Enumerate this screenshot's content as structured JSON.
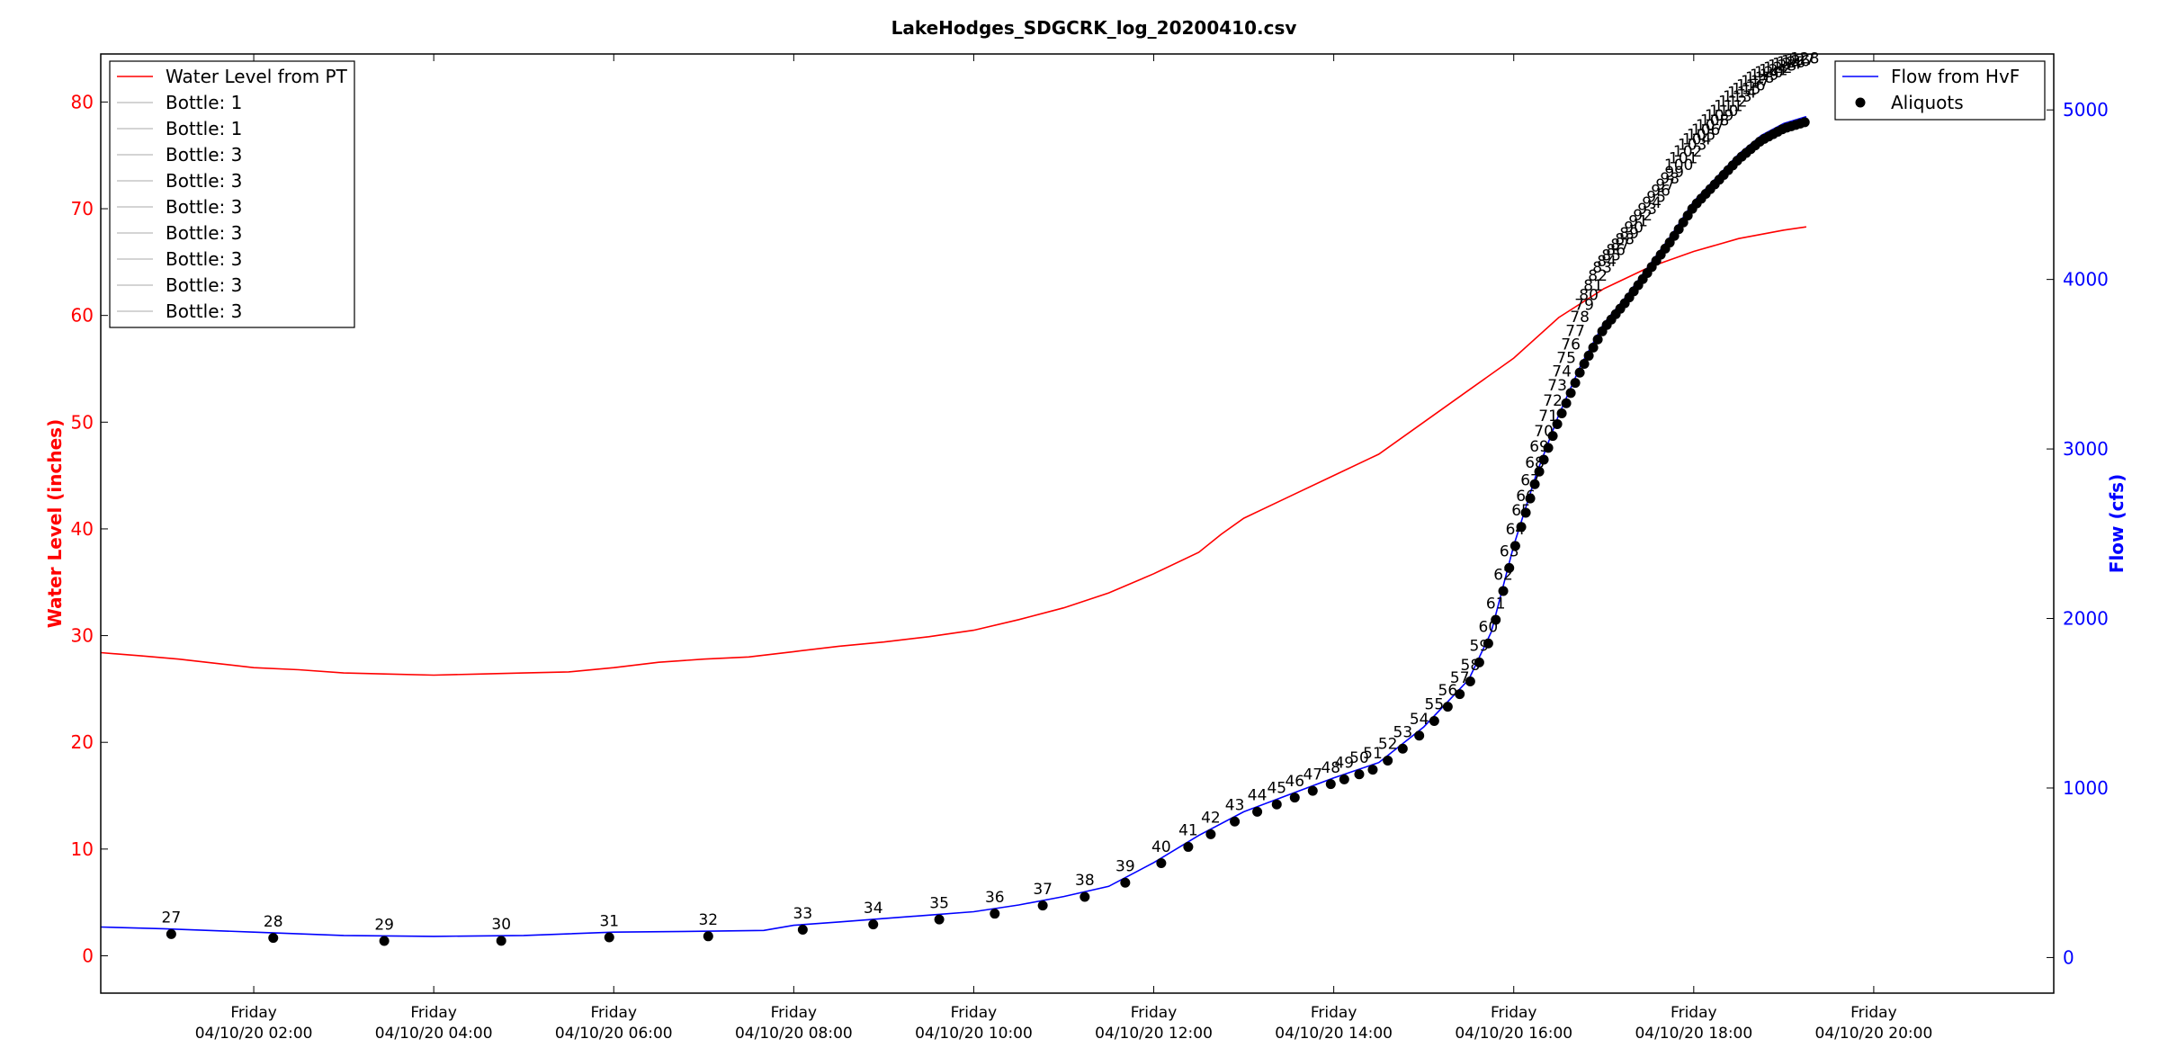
{
  "chart_data": {
    "type": "line",
    "title": "LakeHodges_SDGCRK_log_20200410.csv",
    "xaxis": {
      "ticks": [
        {
          "time": "02:00",
          "day": "Friday",
          "date": "04/10/20 02:00"
        },
        {
          "time": "04:00",
          "day": "Friday",
          "date": "04/10/20 04:00"
        },
        {
          "time": "06:00",
          "day": "Friday",
          "date": "04/10/20 06:00"
        },
        {
          "time": "08:00",
          "day": "Friday",
          "date": "04/10/20 08:00"
        },
        {
          "time": "10:00",
          "day": "Friday",
          "date": "04/10/20 10:00"
        },
        {
          "time": "12:00",
          "day": "Friday",
          "date": "04/10/20 12:00"
        },
        {
          "time": "14:00",
          "day": "Friday",
          "date": "04/10/20 14:00"
        },
        {
          "time": "16:00",
          "day": "Friday",
          "date": "04/10/20 16:00"
        },
        {
          "time": "18:00",
          "day": "Friday",
          "date": "04/10/20 18:00"
        },
        {
          "time": "20:00",
          "day": "Friday",
          "date": "04/10/20 20:00"
        }
      ],
      "range": [
        "00:18",
        "22:00"
      ]
    },
    "y_left": {
      "label": "Water Level (inches)",
      "range": [
        -3.5,
        84.5
      ],
      "ticks": [
        0,
        10,
        20,
        30,
        40,
        50,
        60,
        70,
        80
      ],
      "color": "#ff0000"
    },
    "y_right": {
      "label": "Flow (cfs)",
      "range": [
        -210,
        5330
      ],
      "ticks": [
        0,
        1000,
        2000,
        3000,
        4000,
        5000
      ],
      "color": "#0000ff"
    },
    "legend_left": {
      "placement": "top-left",
      "entries": [
        {
          "label": "Water Level from PT",
          "color": "#ff0000"
        },
        {
          "label": "Bottle: 1",
          "color": "#aaaaaa"
        },
        {
          "label": "Bottle: 1",
          "color": "#aaaaaa"
        },
        {
          "label": "Bottle: 3",
          "color": "#aaaaaa"
        },
        {
          "label": "Bottle: 3",
          "color": "#aaaaaa"
        },
        {
          "label": "Bottle: 3",
          "color": "#aaaaaa"
        },
        {
          "label": "Bottle: 3",
          "color": "#aaaaaa"
        },
        {
          "label": "Bottle: 3",
          "color": "#aaaaaa"
        },
        {
          "label": "Bottle: 3",
          "color": "#aaaaaa"
        },
        {
          "label": "Bottle: 3",
          "color": "#aaaaaa"
        }
      ]
    },
    "legend_right": {
      "placement": "top-right",
      "entries": [
        {
          "label": "Flow from HvF",
          "color": "#0000ff",
          "kind": "line"
        },
        {
          "label": "Aliquots",
          "color": "#000000",
          "kind": "marker"
        }
      ]
    },
    "series": [
      {
        "name": "Water Level from PT",
        "axis": "left",
        "color": "#ff0000",
        "points": [
          [
            "00:18",
            28.4
          ],
          [
            "00:45",
            28.1
          ],
          [
            "01:10",
            27.8
          ],
          [
            "01:35",
            27.4
          ],
          [
            "02:00",
            27.0
          ],
          [
            "02:30",
            26.8
          ],
          [
            "03:00",
            26.5
          ],
          [
            "03:30",
            26.4
          ],
          [
            "04:00",
            26.3
          ],
          [
            "04:30",
            26.4
          ],
          [
            "05:00",
            26.5
          ],
          [
            "05:30",
            26.6
          ],
          [
            "06:00",
            27.0
          ],
          [
            "06:30",
            27.5
          ],
          [
            "07:00",
            27.8
          ],
          [
            "07:30",
            28.0
          ],
          [
            "08:00",
            28.5
          ],
          [
            "08:30",
            29.0
          ],
          [
            "09:00",
            29.4
          ],
          [
            "09:30",
            29.9
          ],
          [
            "10:00",
            30.5
          ],
          [
            "10:30",
            31.5
          ],
          [
            "11:00",
            32.6
          ],
          [
            "11:30",
            34.0
          ],
          [
            "12:00",
            35.8
          ],
          [
            "12:30",
            37.8
          ],
          [
            "12:45",
            39.5
          ],
          [
            "13:00",
            41.0
          ],
          [
            "13:30",
            43.0
          ],
          [
            "14:00",
            45.0
          ],
          [
            "14:30",
            47.0
          ],
          [
            "15:00",
            50.0
          ],
          [
            "15:30",
            53.0
          ],
          [
            "16:00",
            56.0
          ],
          [
            "16:30",
            59.8
          ],
          [
            "17:00",
            62.5
          ],
          [
            "17:30",
            64.5
          ],
          [
            "18:00",
            66.0
          ],
          [
            "18:30",
            67.2
          ],
          [
            "19:00",
            68.0
          ],
          [
            "19:15",
            68.3
          ]
        ]
      },
      {
        "name": "Flow from HvF",
        "axis": "right",
        "color": "#0000ff",
        "points": [
          [
            "00:18",
            180
          ],
          [
            "01:00",
            170
          ],
          [
            "02:00",
            150
          ],
          [
            "03:00",
            130
          ],
          [
            "04:00",
            125
          ],
          [
            "05:00",
            130
          ],
          [
            "06:00",
            150
          ],
          [
            "07:00",
            155
          ],
          [
            "07:40",
            160
          ],
          [
            "08:00",
            190
          ],
          [
            "08:30",
            210
          ],
          [
            "09:00",
            230
          ],
          [
            "09:30",
            250
          ],
          [
            "10:00",
            270
          ],
          [
            "10:30",
            310
          ],
          [
            "11:00",
            360
          ],
          [
            "11:30",
            420
          ],
          [
            "12:00",
            560
          ],
          [
            "12:30",
            720
          ],
          [
            "13:00",
            860
          ],
          [
            "13:30",
            960
          ],
          [
            "14:00",
            1060
          ],
          [
            "14:30",
            1150
          ],
          [
            "15:00",
            1360
          ],
          [
            "15:30",
            1640
          ],
          [
            "15:45",
            1920
          ],
          [
            "16:00",
            2430
          ],
          [
            "16:15",
            2850
          ],
          [
            "16:30",
            3200
          ],
          [
            "16:45",
            3500
          ],
          [
            "17:00",
            3740
          ],
          [
            "17:15",
            3900
          ],
          [
            "17:30",
            4080
          ],
          [
            "17:45",
            4260
          ],
          [
            "18:00",
            4460
          ],
          [
            "18:15",
            4600
          ],
          [
            "18:30",
            4740
          ],
          [
            "18:45",
            4850
          ],
          [
            "19:00",
            4920
          ],
          [
            "19:15",
            4960
          ]
        ]
      }
    ],
    "aliquots": {
      "name": "Aliquots",
      "first_number": 27,
      "times": [
        "01:05",
        "02:13",
        "03:27",
        "04:45",
        "05:57",
        "07:03",
        "08:06",
        "08:53",
        "09:37",
        "10:14",
        "10:46",
        "11:14",
        "11:41",
        "12:05",
        "12:23",
        "12:38",
        "12:54",
        "13:09",
        "13:22",
        "13:34",
        "13:46",
        "13:58",
        "14:07",
        "14:17",
        "14:26",
        "14:36",
        "14:46",
        "14:57",
        "15:07",
        "15:16",
        "15:24",
        "15:31",
        "15:37",
        "15:43",
        "15:48",
        "15:53",
        "15:57",
        "16:01",
        "16:05",
        "16:08",
        "16:11",
        "16:14",
        "16:17",
        "16:20",
        "16:23",
        "16:26",
        "16:29",
        "16:32",
        "16:35",
        "16:38",
        "16:41",
        "16:44",
        "16:47",
        "16:50",
        "16:53",
        "16:56",
        "16:59",
        "17:02",
        "17:05",
        "17:08",
        "17:11",
        "17:14",
        "17:17",
        "17:20",
        "17:23",
        "17:26",
        "17:29",
        "17:32",
        "17:35",
        "17:38",
        "17:41",
        "17:44",
        "17:47",
        "17:50",
        "17:53",
        "17:56",
        "17:59",
        "18:02",
        "18:05",
        "18:08",
        "18:11",
        "18:14",
        "18:17",
        "18:20",
        "18:23",
        "18:26",
        "18:29",
        "18:32",
        "18:35",
        "18:38",
        "18:41",
        "18:44",
        "18:47",
        "18:50",
        "18:53",
        "18:56",
        "18:59",
        "19:02",
        "19:05",
        "19:08",
        "19:11",
        "19:14"
      ],
      "label_rise": [
        110,
        110,
        110,
        110,
        110,
        110,
        110,
        110,
        110,
        110,
        110,
        110,
        110,
        110,
        110,
        110,
        110,
        110,
        110,
        110,
        110,
        110,
        110,
        110,
        110,
        110,
        110,
        110,
        110,
        110,
        110,
        110,
        110,
        110,
        110,
        110,
        110,
        110,
        110,
        110,
        120,
        140,
        160,
        180,
        200,
        220,
        240,
        260,
        280,
        300,
        320,
        340,
        360,
        370,
        380,
        390,
        390,
        390,
        390,
        390,
        390,
        390,
        390,
        390,
        390,
        390,
        390,
        390,
        390,
        390,
        390,
        390,
        390,
        390,
        390,
        390,
        390,
        390,
        390,
        390,
        390,
        390,
        390,
        390,
        390,
        390,
        390,
        390,
        390,
        390,
        390,
        390,
        390,
        390,
        390,
        390,
        390,
        390,
        390,
        390,
        390,
        390
      ]
    }
  }
}
